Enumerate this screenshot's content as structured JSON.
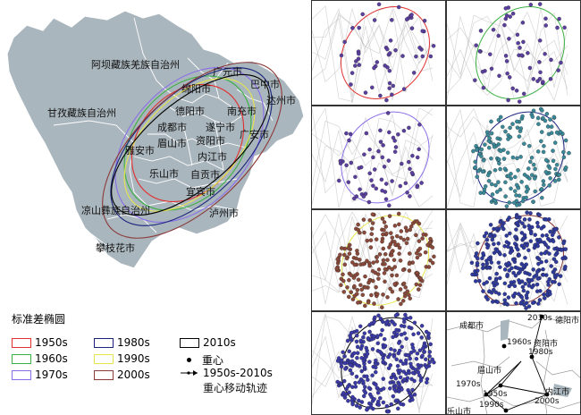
{
  "map": {
    "regions": [
      {
        "name": "阿坝藏族羌族自治州"
      },
      {
        "name": "广元市"
      },
      {
        "name": "巴中市"
      },
      {
        "name": "绵阳市"
      },
      {
        "name": "达州市"
      },
      {
        "name": "德阳市"
      },
      {
        "name": "南充市"
      },
      {
        "name": "甘孜藏族自治州"
      },
      {
        "name": "成都市"
      },
      {
        "name": "遂宁市"
      },
      {
        "name": "广安市"
      },
      {
        "name": "雅安市"
      },
      {
        "name": "眉山市"
      },
      {
        "name": "资阳市"
      },
      {
        "name": "内江市"
      },
      {
        "name": "自贡市"
      },
      {
        "name": "乐山市"
      },
      {
        "name": "宜宾市"
      },
      {
        "name": "凉山彝族自治州"
      },
      {
        "name": "泸州市"
      },
      {
        "name": "攀枝花市"
      }
    ]
  },
  "legend": {
    "title": "标准差椭圆",
    "items": [
      {
        "label": "1950s",
        "color": "#e03030"
      },
      {
        "label": "1960s",
        "color": "#3cb043"
      },
      {
        "label": "1970s",
        "color": "#8a6ee8"
      },
      {
        "label": "1980s",
        "color": "#1a237e"
      },
      {
        "label": "1990s",
        "color": "#e6e64a"
      },
      {
        "label": "2000s",
        "color": "#8b3a3a"
      },
      {
        "label": "2010s",
        "color": "#000000"
      }
    ],
    "center_label": "重心",
    "trajectory_label_1": "1950s-2010s",
    "trajectory_label_2": "重心移动轨迹"
  },
  "panels": [
    {
      "decade": "1950s",
      "ellipse_color": "#e03030",
      "dot_color": "#5b3fa0"
    },
    {
      "decade": "1960s",
      "ellipse_color": "#3cb043",
      "dot_color": "#5b3fa0"
    },
    {
      "decade": "1970s",
      "ellipse_color": "#8a6ee8",
      "dot_color": "#5b3fa0"
    },
    {
      "decade": "1980s",
      "ellipse_color": "#1a237e",
      "dot_color": "#3a8a9a"
    },
    {
      "decade": "1990s",
      "ellipse_color": "#e6e64a",
      "dot_color": "#8b4a3a"
    },
    {
      "decade": "2000s",
      "ellipse_color": "#8b3a3a",
      "dot_color": "#2f3a9e"
    },
    {
      "decade": "2010s",
      "ellipse_color": "#000000",
      "dot_color": "#3a3aa8"
    }
  ],
  "inset": {
    "cities": [
      {
        "name": "成都市"
      },
      {
        "name": "德阳市"
      },
      {
        "name": "资阳市"
      },
      {
        "name": "眉山市"
      },
      {
        "name": "内江市"
      },
      {
        "name": "乐山市"
      }
    ],
    "centroids": [
      {
        "label": "2010s"
      },
      {
        "label": "1960s"
      },
      {
        "label": "1980s"
      },
      {
        "label": "1970s"
      },
      {
        "label": "1950s"
      },
      {
        "label": "1990s"
      },
      {
        "label": "2000s"
      }
    ]
  }
}
